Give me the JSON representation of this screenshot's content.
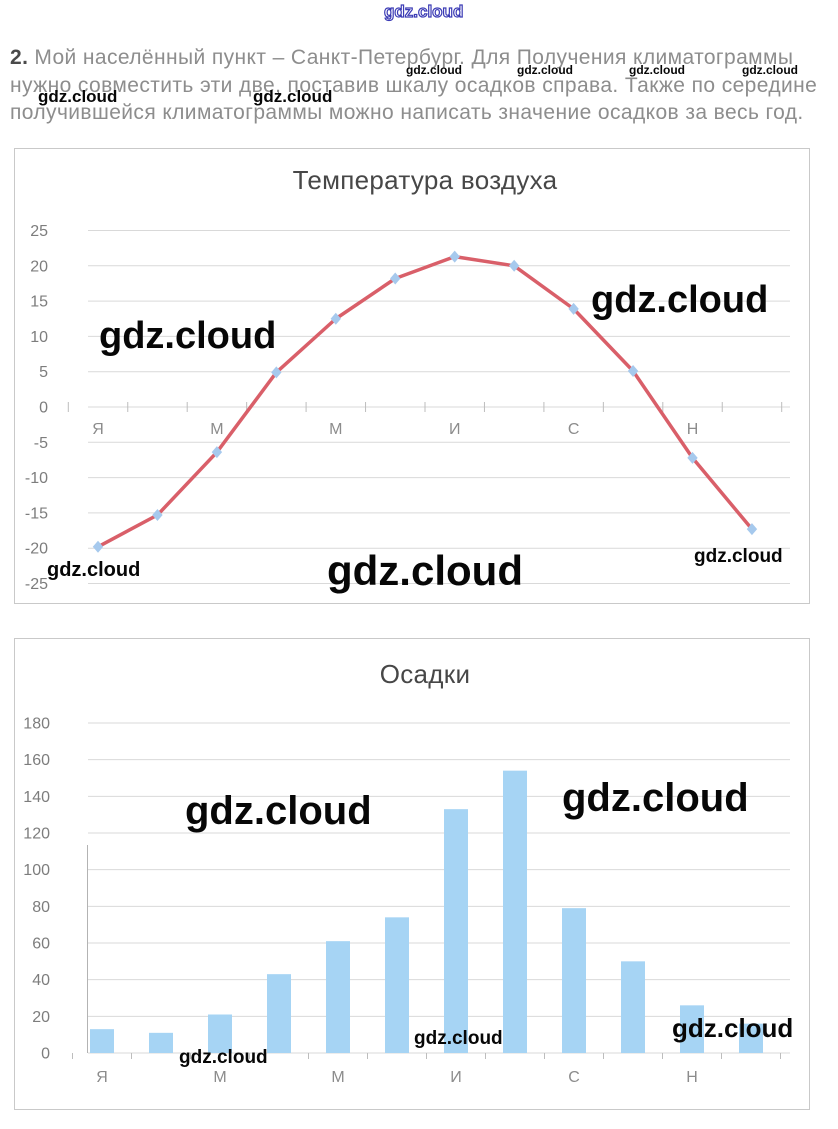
{
  "page": {
    "watermark": "gdz.cloud"
  },
  "task": {
    "number": "2.",
    "lines": [
      "Мой населённый пункт – Санкт-Петербург. Для Получения климатограммы",
      "нужно совместить эти две, поставив шкалу осадков справа. Также по середине",
      "получившейся климатограммы можно написать значение осадков за весь год."
    ]
  },
  "chart_data": [
    {
      "type": "line",
      "title": "Температура воздуха",
      "xlabel": "",
      "ylabel": "",
      "x_tick_labels": [
        "Я",
        "М",
        "М",
        "И",
        "С",
        "Н"
      ],
      "months_count": 12,
      "values": [
        -19.8,
        -15.3,
        -6.4,
        4.9,
        12.5,
        18.2,
        21.3,
        20.0,
        13.9,
        5.1,
        -7.2,
        -17.3
      ],
      "ylim": [
        -25,
        25
      ],
      "y_ticks": [
        25,
        20,
        15,
        10,
        5,
        0,
        -5,
        -10,
        -15,
        -20,
        -25
      ],
      "grid": true,
      "legend": "none",
      "line_color": "#d95f69",
      "marker": "diamond",
      "marker_color": "#a6c9ed",
      "axis_label_color": "#7d7d7d"
    },
    {
      "type": "bar",
      "title": "Осадки",
      "xlabel": "",
      "ylabel": "",
      "x_tick_labels": [
        "Я",
        "М",
        "М",
        "И",
        "С",
        "Н"
      ],
      "months_count": 12,
      "values": [
        13,
        11,
        21,
        43,
        61,
        74,
        133,
        154,
        79,
        50,
        26,
        16
      ],
      "ylim": [
        0,
        180
      ],
      "y_ticks": [
        180,
        160,
        140,
        120,
        100,
        80,
        60,
        40,
        20,
        0
      ],
      "grid": true,
      "legend": "none",
      "bar_color": "#a6d4f4",
      "axis_label_color": "#7d7d7d"
    }
  ]
}
